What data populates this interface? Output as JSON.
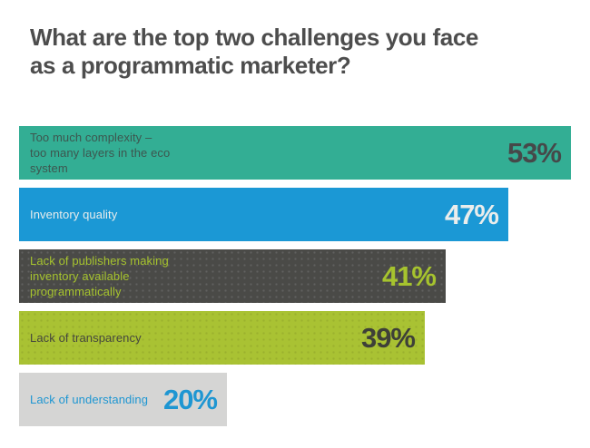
{
  "page": {
    "background": "#FFFFFF"
  },
  "title": {
    "text": "What are the top two challenges you face\nas a programmatic marketer?",
    "color": "#4D4D4D"
  },
  "chart_data": {
    "type": "bar",
    "orientation": "horizontal",
    "title": "What are the top two challenges you face as a programmatic marketer?",
    "categories": [
      "Too much complexity – too many layers in the eco system",
      "Inventory quality",
      "Lack of publishers making inventory available programmatically",
      "Lack of transparency",
      "Lack of understanding"
    ],
    "values": [
      53,
      47,
      41,
      39,
      20
    ],
    "unit": "%",
    "value_axis_range": [
      0,
      55
    ],
    "grid": false,
    "legend": false,
    "bars": [
      {
        "label_lines": [
          "Too much complexity –",
          "too many layers in the eco",
          "system"
        ],
        "value": 53,
        "value_label": "53%",
        "bar_color": "#33AE94",
        "label_color": "#3D564F",
        "value_color": "#464849",
        "texture": "none"
      },
      {
        "label_lines": [
          "Inventory quality"
        ],
        "value": 47,
        "value_label": "47%",
        "bar_color": "#1B98D5",
        "label_color": "#EAEDEC",
        "value_color": "#EAEDEC",
        "texture": "none"
      },
      {
        "label_lines": [
          "Lack of publishers making",
          "inventory available",
          "programmatically"
        ],
        "value": 41,
        "value_label": "41%",
        "bar_color": "#4A4A47",
        "label_color": "#A6C32E",
        "value_color": "#A6C32E",
        "texture": "light-dots"
      },
      {
        "label_lines": [
          "Lack of transparency"
        ],
        "value": 39,
        "value_label": "39%",
        "bar_color": "#A9C233",
        "label_color": "#45463E",
        "value_color": "#3E4038",
        "texture": "dark-dots"
      },
      {
        "label_lines": [
          "Lack of understanding"
        ],
        "value": 20,
        "value_label": "20%",
        "bar_color": "#D5D5D4",
        "label_color": "#1E96D2",
        "value_color": "#1E96D2",
        "texture": "none"
      }
    ]
  }
}
